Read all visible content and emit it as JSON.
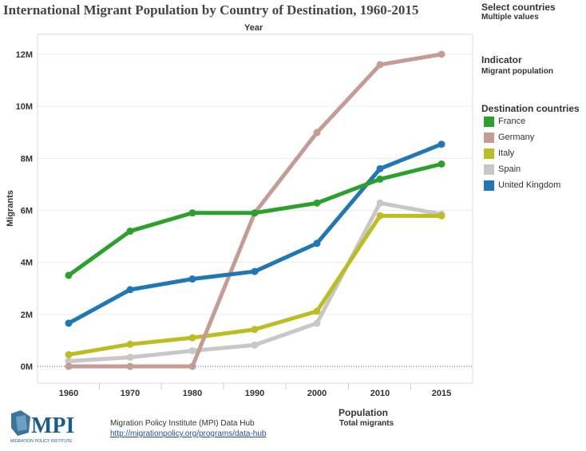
{
  "title": "International Migrant Population by Country of Destination, 1960-2015",
  "filters": {
    "select_countries_label": "Select countries",
    "select_countries_value": "Multiple values",
    "indicator_label": "Indicator",
    "indicator_value": "Migrant population",
    "legend_title": "Destination countries",
    "population_label": "Population",
    "population_value": "Total migrants"
  },
  "footer": {
    "source_name": "Migration Policy Institute (MPI) Data Hub",
    "source_link": "http://migrationpolicy.org/programs/data-hub",
    "logo_text": "MPI",
    "logo_subtext": "MIGRATION POLICY INSTITUTE"
  },
  "chart_data": {
    "type": "line",
    "title": "International Migrant Population by Country of Destination, 1960-2015",
    "xlabel": "Year",
    "ylabel": "Migrants",
    "x": [
      "1960",
      "1970",
      "1980",
      "1990",
      "2000",
      "2010",
      "2015"
    ],
    "ylim": [
      0,
      12000000
    ],
    "yticks": [
      0,
      2000000,
      4000000,
      6000000,
      8000000,
      10000000,
      12000000
    ],
    "ytick_labels": [
      "0M",
      "2M",
      "4M",
      "6M",
      "8M",
      "10M",
      "12M"
    ],
    "grid": "horizontal",
    "legend_position": "right",
    "series": [
      {
        "name": "France",
        "color": "#2ca02c",
        "values": [
          3500000,
          5200000,
          5900000,
          5900000,
          6280000,
          7200000,
          7780000
        ]
      },
      {
        "name": "Germany",
        "color": "#c49c94",
        "values": [
          0,
          0,
          0,
          5900000,
          8990000,
          11600000,
          12000000
        ]
      },
      {
        "name": "Italy",
        "color": "#bcbd22",
        "values": [
          450000,
          850000,
          1100000,
          1420000,
          2120000,
          5790000,
          5790000
        ]
      },
      {
        "name": "Spain",
        "color": "#c7c7c7",
        "values": [
          200000,
          350000,
          600000,
          820000,
          1660000,
          6280000,
          5850000
        ]
      },
      {
        "name": "United Kingdom",
        "color": "#1f77b4",
        "values": [
          1660000,
          2950000,
          3360000,
          3650000,
          4730000,
          7600000,
          8540000
        ]
      }
    ]
  }
}
